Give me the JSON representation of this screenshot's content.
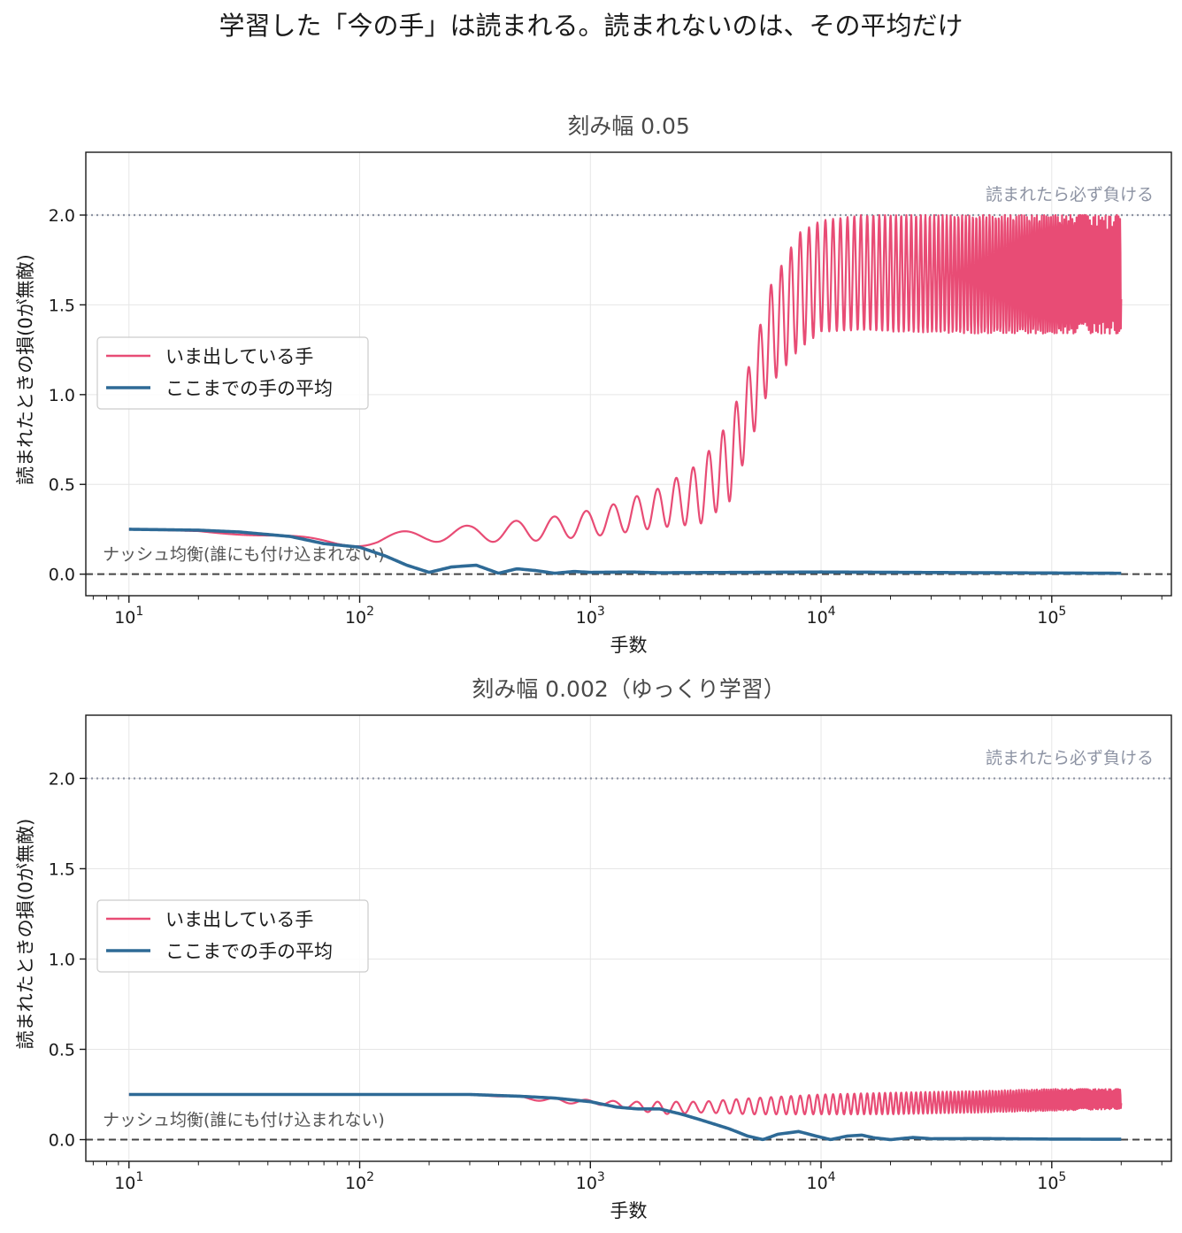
{
  "figure": {
    "suptitle": "学習した「今の手」は読まれる。読まれないのは、その平均だけ",
    "colors": {
      "current": "#e84c75",
      "average": "#2e6a96",
      "ref_win": "#8e94a4",
      "ref_nash": "#444444",
      "grid": "#e6e6e6"
    }
  },
  "chart_data": [
    {
      "type": "line",
      "title": "刻み幅 0.05",
      "xlabel": "手数",
      "ylabel": "読まれたときの損(0が無敵)",
      "xscale": "log",
      "xlim": [
        6.5,
        330000
      ],
      "ylim": [
        -0.12,
        2.35
      ],
      "xticks": [
        10,
        100,
        1000,
        10000,
        100000
      ],
      "xtick_labels": [
        {
          "base": "10",
          "exp": "1"
        },
        {
          "base": "10",
          "exp": "2"
        },
        {
          "base": "10",
          "exp": "3"
        },
        {
          "base": "10",
          "exp": "4"
        },
        {
          "base": "10",
          "exp": "5"
        }
      ],
      "yticks": [
        0.0,
        0.5,
        1.0,
        1.5,
        2.0
      ],
      "ytick_labels": [
        "0.0",
        "0.5",
        "1.0",
        "1.5",
        "2.0"
      ],
      "grid": true,
      "legend": "center-left",
      "reference_lines": [
        {
          "y": 2.0,
          "style": "dotted",
          "label": "読まれたら必ず負ける"
        },
        {
          "y": 0.0,
          "style": "dashed",
          "label": "ナッシュ均衡(誰にも付け込まれない)"
        }
      ],
      "series": [
        {
          "name": "いま出している手",
          "style": "oscillating band",
          "envelope_x": [
            10,
            20,
            40,
            80,
            120,
            200,
            300,
            500,
            800,
            1200,
            2000,
            3000,
            4000,
            5000,
            6000,
            8000,
            10000,
            15000,
            20000,
            50000,
            100000,
            200000
          ],
          "envelope_upper": [
            0.25,
            0.24,
            0.22,
            0.2,
            0.21,
            0.27,
            0.27,
            0.3,
            0.33,
            0.38,
            0.48,
            0.62,
            0.85,
            1.2,
            1.6,
            1.9,
            1.97,
            2.0,
            2.0,
            2.0,
            2.0,
            2.0
          ],
          "envelope_lower": [
            0.25,
            0.24,
            0.2,
            0.16,
            0.15,
            0.18,
            0.18,
            0.18,
            0.2,
            0.22,
            0.26,
            0.28,
            0.4,
            0.75,
            1.05,
            1.25,
            1.35,
            1.36,
            1.35,
            1.34,
            1.34,
            1.34
          ]
        },
        {
          "name": "ここまでの手の平均",
          "x": [
            10,
            20,
            30,
            50,
            70,
            100,
            130,
            160,
            200,
            250,
            320,
            400,
            480,
            580,
            700,
            850,
            1000,
            1500,
            2000,
            5000,
            10000,
            50000,
            200000
          ],
          "y": [
            0.25,
            0.245,
            0.235,
            0.21,
            0.17,
            0.15,
            0.1,
            0.05,
            0.01,
            0.04,
            0.05,
            0.005,
            0.03,
            0.02,
            0.005,
            0.015,
            0.01,
            0.012,
            0.008,
            0.01,
            0.012,
            0.008,
            0.005
          ]
        }
      ]
    },
    {
      "type": "line",
      "title": "刻み幅 0.002（ゆっくり学習）",
      "xlabel": "手数",
      "ylabel": "読まれたときの損(0が無敵)",
      "xscale": "log",
      "xlim": [
        6.5,
        330000
      ],
      "ylim": [
        -0.12,
        2.35
      ],
      "xticks": [
        10,
        100,
        1000,
        10000,
        100000
      ],
      "xtick_labels": [
        {
          "base": "10",
          "exp": "1"
        },
        {
          "base": "10",
          "exp": "2"
        },
        {
          "base": "10",
          "exp": "3"
        },
        {
          "base": "10",
          "exp": "4"
        },
        {
          "base": "10",
          "exp": "5"
        }
      ],
      "yticks": [
        0.0,
        0.5,
        1.0,
        1.5,
        2.0
      ],
      "ytick_labels": [
        "0.0",
        "0.5",
        "1.0",
        "1.5",
        "2.0"
      ],
      "grid": true,
      "legend": "center-left",
      "reference_lines": [
        {
          "y": 2.0,
          "style": "dotted",
          "label": "読まれたら必ず負ける"
        },
        {
          "y": 0.0,
          "style": "dashed",
          "label": "ナッシュ均衡(誰にも付け込まれない)"
        }
      ],
      "series": [
        {
          "name": "いま出している手",
          "style": "oscillating band",
          "envelope_x": [
            10,
            100,
            300,
            500,
            700,
            1000,
            1500,
            2000,
            3000,
            5000,
            10000,
            20000,
            50000,
            100000,
            200000
          ],
          "envelope_upper": [
            0.25,
            0.25,
            0.25,
            0.24,
            0.23,
            0.22,
            0.21,
            0.21,
            0.21,
            0.23,
            0.25,
            0.26,
            0.27,
            0.28,
            0.28
          ],
          "envelope_lower": [
            0.25,
            0.25,
            0.25,
            0.23,
            0.2,
            0.2,
            0.17,
            0.14,
            0.15,
            0.14,
            0.14,
            0.14,
            0.15,
            0.16,
            0.17
          ]
        },
        {
          "name": "ここまでの手の平均",
          "x": [
            10,
            100,
            300,
            500,
            700,
            1000,
            1300,
            1600,
            2000,
            2500,
            3000,
            4000,
            4800,
            5600,
            6500,
            8000,
            9500,
            11000,
            13000,
            15000,
            17000,
            20000,
            25000,
            30000,
            50000,
            100000,
            200000
          ],
          "y": [
            0.25,
            0.25,
            0.25,
            0.24,
            0.23,
            0.21,
            0.18,
            0.17,
            0.17,
            0.14,
            0.11,
            0.06,
            0.02,
            0.0,
            0.03,
            0.045,
            0.02,
            0.0,
            0.02,
            0.025,
            0.01,
            0.0,
            0.012,
            0.005,
            0.006,
            0.003,
            0.002
          ]
        }
      ]
    }
  ]
}
